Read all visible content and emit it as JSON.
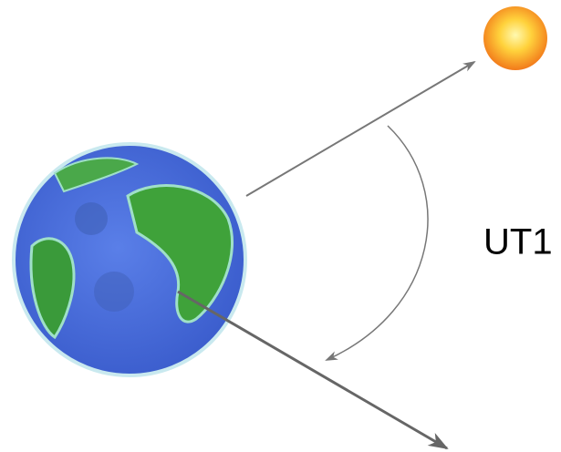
{
  "label": "UT1"
}
